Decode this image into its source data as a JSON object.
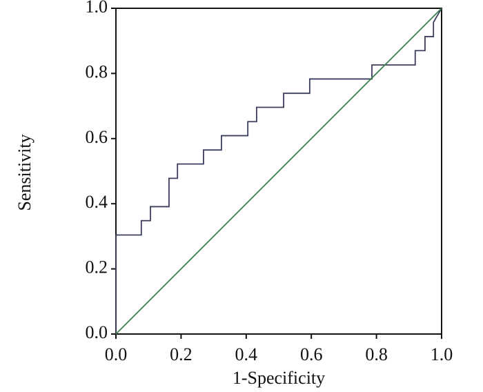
{
  "chart_data": {
    "type": "line",
    "x_label": "1-Specificity",
    "y_label": "Sensitivity",
    "xlim": [
      0,
      1
    ],
    "ylim": [
      0,
      1
    ],
    "xticks": [
      {
        "value": 0,
        "label": "0.0"
      },
      0.2,
      0.4,
      0.6,
      0.8,
      {
        "value": 1,
        "label": "1.0"
      }
    ],
    "yticks": [
      {
        "value": 0,
        "label": "0.0"
      },
      0.2,
      0.4,
      0.6,
      0.8,
      {
        "value": 1,
        "label": "1.0"
      }
    ],
    "series": [
      {
        "color": "#3a3d5c",
        "x": [
          0,
          0,
          0.078,
          0.078,
          0.106,
          0.106,
          0.163,
          0.163,
          0.189,
          0.189,
          0.269,
          0.269,
          0.324,
          0.324,
          0.405,
          0.405,
          0.432,
          0.432,
          0.515,
          0.515,
          0.595,
          0.595,
          0.786,
          0.786,
          0.919,
          0.919,
          0.949,
          0.949,
          0.975,
          0.975,
          1
        ],
        "values": [
          0,
          0.304,
          0.304,
          0.348,
          0.348,
          0.391,
          0.391,
          0.478,
          0.478,
          0.522,
          0.522,
          0.565,
          0.565,
          0.609,
          0.609,
          0.652,
          0.652,
          0.696,
          0.696,
          0.739,
          0.739,
          0.783,
          0.783,
          0.826,
          0.826,
          0.87,
          0.87,
          0.913,
          0.913,
          0.957,
          1
        ]
      },
      {
        "color": "#3f7f4f",
        "x": [
          0,
          1
        ],
        "values": [
          0,
          1
        ]
      }
    ]
  }
}
